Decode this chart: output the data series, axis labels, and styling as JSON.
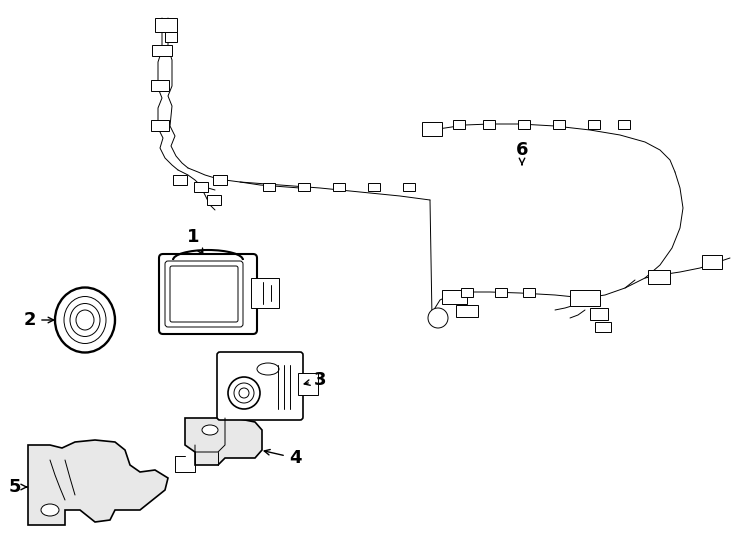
{
  "bg_color": "#ffffff",
  "line_color": "#000000",
  "lw": 1.2,
  "tlw": 0.7
}
